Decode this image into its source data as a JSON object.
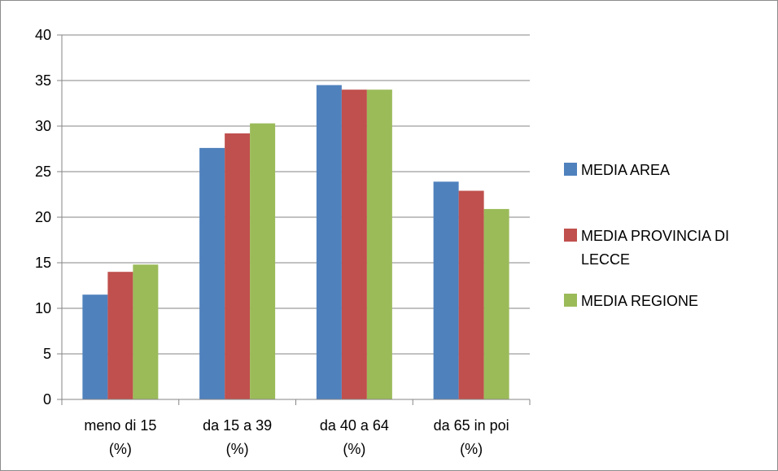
{
  "chart_data": {
    "type": "bar",
    "title": "",
    "xlabel": "",
    "ylabel": "",
    "categories": [
      [
        "meno di 15",
        "(%)"
      ],
      [
        "da 15 a 39",
        "(%)"
      ],
      [
        "da 40 a 64",
        "(%)"
      ],
      [
        "da 65 in poi",
        "(%)"
      ]
    ],
    "series": [
      {
        "name": [
          "MEDIA AREA"
        ],
        "color": "#4f81bd",
        "values": [
          11.5,
          27.6,
          34.5,
          23.9
        ]
      },
      {
        "name": [
          "MEDIA PROVINCIA DI",
          "LECCE"
        ],
        "color": "#c0504d",
        "values": [
          14.0,
          29.2,
          34.0,
          22.9
        ]
      },
      {
        "name": [
          "MEDIA REGIONE"
        ],
        "color": "#9bbb59",
        "values": [
          14.8,
          30.3,
          34.0,
          20.9
        ]
      }
    ],
    "ylim": [
      0,
      40
    ],
    "yticks": [
      0,
      5,
      10,
      15,
      20,
      25,
      30,
      35,
      40
    ],
    "grid": true,
    "legend": "right"
  }
}
